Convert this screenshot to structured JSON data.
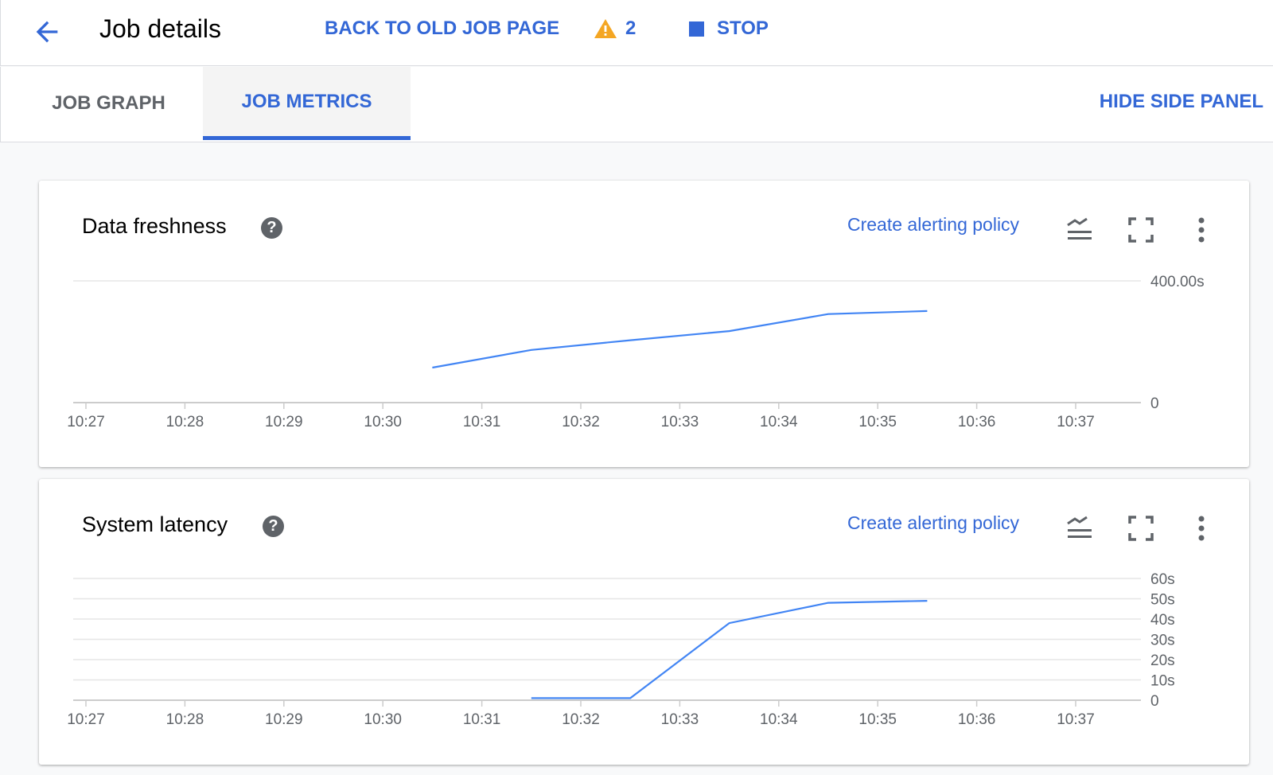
{
  "header": {
    "title": "Job details",
    "back_old": "BACK TO OLD JOB PAGE",
    "warning_count": "2",
    "stop": "STOP",
    "warning_color": "#f4a623",
    "accent": "#3367d6"
  },
  "tabs": [
    {
      "label": "JOB GRAPH",
      "active": false
    },
    {
      "label": "JOB METRICS",
      "active": true
    }
  ],
  "hide_side_panel": "HIDE SIDE PANEL",
  "chart_data": [
    {
      "type": "line",
      "title": "Data freshness",
      "action": "Create alerting policy",
      "help": "?",
      "x_ticks": [
        "10:27",
        "10:28",
        "10:29",
        "10:30",
        "10:31",
        "10:32",
        "10:33",
        "10:34",
        "10:35",
        "10:36",
        "10:37"
      ],
      "y_ticks": [
        "0",
        "400.00s"
      ],
      "y_tick_values": [
        0,
        400
      ],
      "ylim": [
        0,
        400
      ],
      "grid": true,
      "line_color": "#4285f4",
      "x": [
        "10:30:30",
        "10:31:30",
        "10:32:30",
        "10:33:30",
        "10:34:30",
        "10:35:30"
      ],
      "values": [
        115,
        173,
        205,
        235,
        291,
        301
      ]
    },
    {
      "type": "line",
      "title": "System latency",
      "action": "Create alerting policy",
      "help": "?",
      "x_ticks": [
        "10:27",
        "10:28",
        "10:29",
        "10:30",
        "10:31",
        "10:32",
        "10:33",
        "10:34",
        "10:35",
        "10:36",
        "10:37"
      ],
      "y_ticks": [
        "0",
        "10s",
        "20s",
        "30s",
        "40s",
        "50s",
        "60s"
      ],
      "y_tick_values": [
        0,
        10,
        20,
        30,
        40,
        50,
        60
      ],
      "ylim": [
        0,
        60
      ],
      "grid": true,
      "line_color": "#4285f4",
      "x": [
        "10:31:30",
        "10:32:30",
        "10:33:30",
        "10:34:30",
        "10:35:30"
      ],
      "values": [
        1,
        1,
        38,
        48,
        49
      ]
    }
  ]
}
